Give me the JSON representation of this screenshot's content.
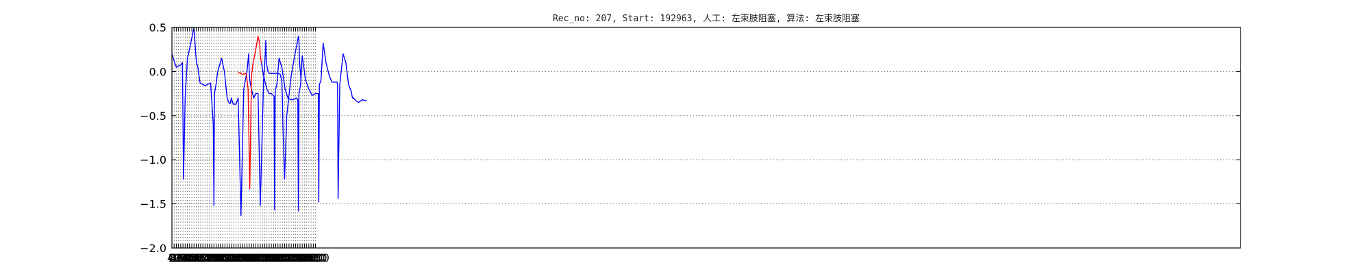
{
  "chart_data": {
    "type": "line",
    "title": "Rec_no: 207, Start: 192963, 人工: 左束肢阻塞, 算法: 左束肢阻塞",
    "xlabel": "",
    "ylabel": "",
    "xlim": [
      0,
      4900
    ],
    "ylim": [
      -2.0,
      0.5
    ],
    "grid": true,
    "x_ticks": [
      0,
      40,
      80,
      120,
      160,
      200,
      240,
      280,
      320,
      360,
      400,
      440,
      480,
      520,
      560,
      600,
      640,
      680,
      720,
      760,
      800,
      840,
      880,
      920,
      960,
      1000,
      1040,
      1080,
      1120,
      1160,
      1200,
      1240,
      1280,
      1320,
      1360,
      1400,
      1440,
      1480,
      1520,
      1560,
      1600,
      1640,
      1680,
      1720,
      1760,
      1800,
      1840,
      1880,
      1920,
      1960,
      2000,
      2040,
      2080,
      2120,
      2160,
      2200,
      2240,
      2280,
      2320,
      2360,
      2400,
      2440,
      2480,
      2520,
      2560,
      2600
    ],
    "x_tick_labels": [
      "0",
      "40",
      "80",
      "120",
      "160",
      "200",
      "240",
      "280",
      "320",
      "360",
      "400",
      "440",
      "480",
      "520",
      "560",
      "600",
      "640",
      "680",
      "720",
      "760",
      "800",
      "840",
      "880",
      "920",
      "960",
      "1000",
      "1040",
      "1080",
      "1120",
      "1160",
      "1200",
      "1240",
      "1280",
      "1320",
      "1360",
      "1400",
      "1440",
      "1480",
      "1520",
      "1560",
      "1600",
      "1640",
      "1680",
      "1720",
      "1760",
      "1800",
      "1840",
      "1880",
      "1920",
      "1960",
      "2000",
      "2040",
      "2080",
      "2120",
      "2160",
      "2200",
      "2240",
      "2280",
      "2320",
      "2360",
      "2400",
      "2440",
      "2480",
      "2520",
      "2560",
      "2600"
    ],
    "y_ticks": [
      0.5,
      0.0,
      -0.5,
      -1.0,
      -1.5,
      -2.0
    ],
    "y_tick_labels": [
      "0.5",
      "0.0",
      "−0.5",
      "−1.0",
      "−1.5",
      "−2.0"
    ],
    "series": [
      {
        "color": "#0000ff",
        "x": [
          0,
          50,
          80,
          150,
          190,
          200,
          210,
          240,
          280,
          300,
          400,
          420,
          430,
          445,
          470,
          480,
          510,
          600,
          700,
          750,
          760,
          770,
          800,
          830,
          900,
          950,
          1000,
          1030,
          1040,
          1060,
          1075,
          1110,
          1160,
          1200,
          1250,
          1300,
          1360,
          1390,
          1400,
          1410,
          1440,
          1480,
          1520,
          1560,
          1600,
          1660,
          1690,
          1700,
          1710,
          1740,
          1760,
          1840,
          1900,
          1960,
          1990,
          2000,
          2010,
          2040,
          2080,
          2160,
          2230,
          2290,
          2300,
          2310,
          2340
        ],
        "y": [
          0.2,
          0.1,
          0.05,
          0.07,
          0.1,
          -0.5,
          -1.22,
          -0.3,
          0.15,
          0.2,
          0.5,
          0.3,
          0.2,
          0.1,
          0.05,
          0.0,
          -0.13,
          -0.16,
          -0.13,
          -0.6,
          -1.52,
          -0.25,
          -0.14,
          0.0,
          0.15,
          0.0,
          -0.3,
          -0.35,
          -0.36,
          -0.36,
          -0.3,
          -0.37,
          -0.37,
          -0.3,
          -1.63,
          -0.2,
          0.0,
          0.2,
          0.0,
          -0.1,
          -0.2,
          -0.3,
          -0.25,
          -0.25,
          -1.52,
          -0.1,
          0.2,
          0.35,
          0.1,
          0.0,
          -0.02,
          -0.02,
          -0.02,
          -0.03,
          -0.1,
          -0.3,
          -0.6,
          -1.22,
          -0.5,
          -0.05,
          0.2,
          0.4,
          0.35,
          0.1,
          -0.1
        ]
      },
      {
        "color": "#ff0000",
        "x": [
          1190,
          1230,
          1270,
          1310,
          1330,
          1350,
          1380,
          1410,
          1440,
          1470,
          1510,
          1560,
          1590,
          1600,
          1620
        ],
        "y": [
          -0.02,
          -0.01,
          -0.03,
          -0.03,
          -0.02,
          -0.03,
          -0.2,
          -1.33,
          -0.05,
          0.1,
          0.22,
          0.4,
          0.32,
          0.18,
          0.1
        ]
      },
      {
        "color": "#0000ff",
        "x": [
          1620,
          1660,
          1720,
          1760,
          1800,
          1850,
          1860,
          1870,
          1900,
          1940,
          1990,
          2050,
          2100,
          2150,
          2200,
          2250,
          2280,
          2290,
          2300,
          2330,
          2360,
          2420,
          2480,
          2540,
          2600,
          2650,
          2660,
          2670,
          2700,
          2740,
          2790,
          2850,
          2900,
          2960,
          2990,
          3000,
          3010,
          3040,
          3100,
          3150,
          3200,
          3250,
          3260,
          3270,
          3290,
          3330,
          3380,
          3450,
          3500,
          3530
        ],
        "y": [
          0.1,
          -0.05,
          -0.2,
          -0.25,
          -0.25,
          -0.28,
          -1.57,
          -0.22,
          -0.15,
          0.15,
          0.05,
          -0.2,
          -0.3,
          -0.32,
          -0.32,
          -0.3,
          -0.32,
          -1.58,
          -0.25,
          -0.15,
          0.18,
          -0.1,
          -0.2,
          -0.27,
          -0.25,
          -0.25,
          -1.48,
          -0.15,
          -0.1,
          0.32,
          0.1,
          -0.05,
          -0.12,
          -0.12,
          -0.12,
          -0.15,
          -1.44,
          -0.15,
          0.2,
          0.1,
          -0.15,
          -0.23,
          -0.27,
          -0.3,
          -0.3,
          -0.33,
          -0.35,
          -0.32,
          -0.33,
          -0.33
        ]
      }
    ]
  }
}
